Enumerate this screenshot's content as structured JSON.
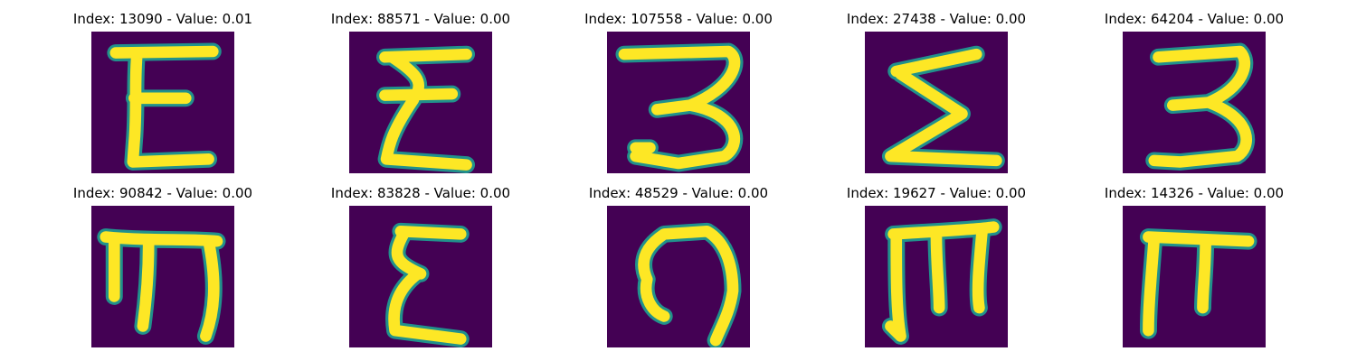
{
  "colors": {
    "background": "#440154",
    "mid": "#21918c",
    "stroke": "#fde725"
  },
  "images": [
    {
      "title": "Index: 13090 - Value: 0.01",
      "glyph": "epsilon"
    },
    {
      "title": "Index: 88571 - Value: 0.00",
      "glyph": "sigma-like epsilon"
    },
    {
      "title": "Index: 107558 - Value: 0.00",
      "glyph": "three with loop"
    },
    {
      "title": "Index: 27438 - Value: 0.00",
      "glyph": "sigma"
    },
    {
      "title": "Index: 64204 - Value: 0.00",
      "glyph": "three"
    },
    {
      "title": "Index: 90842 - Value: 0.00",
      "glyph": "m with top bar"
    },
    {
      "title": "Index: 83828 - Value: 0.00",
      "glyph": "epsilon"
    },
    {
      "title": "Index: 48529 - Value: 0.00",
      "glyph": "hook"
    },
    {
      "title": "Index: 19627 - Value: 0.00",
      "glyph": "m with top bar"
    },
    {
      "title": "Index: 14326 - Value: 0.00",
      "glyph": "pi"
    }
  ]
}
